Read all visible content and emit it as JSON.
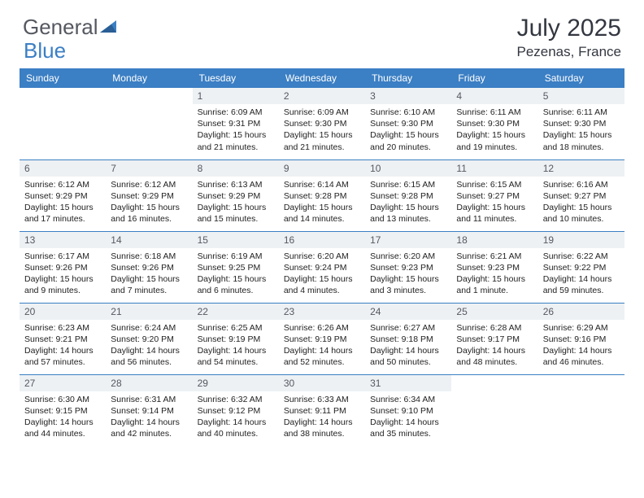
{
  "brand": {
    "part1": "General",
    "part2": "Blue"
  },
  "colors": {
    "accent": "#3b7fc4",
    "header_text": "#333740",
    "logo_gray": "#555860",
    "daynum_bg": "#eef1f4",
    "row_border": "#3b7fc4",
    "text": "#222222",
    "background": "#ffffff"
  },
  "title": "July 2025",
  "location": "Pezenas, France",
  "weekdays": [
    "Sunday",
    "Monday",
    "Tuesday",
    "Wednesday",
    "Thursday",
    "Friday",
    "Saturday"
  ],
  "layout": {
    "first_weekday_index": 2,
    "days_in_month": 31
  },
  "days": [
    {
      "n": 1,
      "sunrise": "6:09 AM",
      "sunset": "9:31 PM",
      "daylight": "15 hours and 21 minutes."
    },
    {
      "n": 2,
      "sunrise": "6:09 AM",
      "sunset": "9:30 PM",
      "daylight": "15 hours and 21 minutes."
    },
    {
      "n": 3,
      "sunrise": "6:10 AM",
      "sunset": "9:30 PM",
      "daylight": "15 hours and 20 minutes."
    },
    {
      "n": 4,
      "sunrise": "6:11 AM",
      "sunset": "9:30 PM",
      "daylight": "15 hours and 19 minutes."
    },
    {
      "n": 5,
      "sunrise": "6:11 AM",
      "sunset": "9:30 PM",
      "daylight": "15 hours and 18 minutes."
    },
    {
      "n": 6,
      "sunrise": "6:12 AM",
      "sunset": "9:29 PM",
      "daylight": "15 hours and 17 minutes."
    },
    {
      "n": 7,
      "sunrise": "6:12 AM",
      "sunset": "9:29 PM",
      "daylight": "15 hours and 16 minutes."
    },
    {
      "n": 8,
      "sunrise": "6:13 AM",
      "sunset": "9:29 PM",
      "daylight": "15 hours and 15 minutes."
    },
    {
      "n": 9,
      "sunrise": "6:14 AM",
      "sunset": "9:28 PM",
      "daylight": "15 hours and 14 minutes."
    },
    {
      "n": 10,
      "sunrise": "6:15 AM",
      "sunset": "9:28 PM",
      "daylight": "15 hours and 13 minutes."
    },
    {
      "n": 11,
      "sunrise": "6:15 AM",
      "sunset": "9:27 PM",
      "daylight": "15 hours and 11 minutes."
    },
    {
      "n": 12,
      "sunrise": "6:16 AM",
      "sunset": "9:27 PM",
      "daylight": "15 hours and 10 minutes."
    },
    {
      "n": 13,
      "sunrise": "6:17 AM",
      "sunset": "9:26 PM",
      "daylight": "15 hours and 9 minutes."
    },
    {
      "n": 14,
      "sunrise": "6:18 AM",
      "sunset": "9:26 PM",
      "daylight": "15 hours and 7 minutes."
    },
    {
      "n": 15,
      "sunrise": "6:19 AM",
      "sunset": "9:25 PM",
      "daylight": "15 hours and 6 minutes."
    },
    {
      "n": 16,
      "sunrise": "6:20 AM",
      "sunset": "9:24 PM",
      "daylight": "15 hours and 4 minutes."
    },
    {
      "n": 17,
      "sunrise": "6:20 AM",
      "sunset": "9:23 PM",
      "daylight": "15 hours and 3 minutes."
    },
    {
      "n": 18,
      "sunrise": "6:21 AM",
      "sunset": "9:23 PM",
      "daylight": "15 hours and 1 minute."
    },
    {
      "n": 19,
      "sunrise": "6:22 AM",
      "sunset": "9:22 PM",
      "daylight": "14 hours and 59 minutes."
    },
    {
      "n": 20,
      "sunrise": "6:23 AM",
      "sunset": "9:21 PM",
      "daylight": "14 hours and 57 minutes."
    },
    {
      "n": 21,
      "sunrise": "6:24 AM",
      "sunset": "9:20 PM",
      "daylight": "14 hours and 56 minutes."
    },
    {
      "n": 22,
      "sunrise": "6:25 AM",
      "sunset": "9:19 PM",
      "daylight": "14 hours and 54 minutes."
    },
    {
      "n": 23,
      "sunrise": "6:26 AM",
      "sunset": "9:19 PM",
      "daylight": "14 hours and 52 minutes."
    },
    {
      "n": 24,
      "sunrise": "6:27 AM",
      "sunset": "9:18 PM",
      "daylight": "14 hours and 50 minutes."
    },
    {
      "n": 25,
      "sunrise": "6:28 AM",
      "sunset": "9:17 PM",
      "daylight": "14 hours and 48 minutes."
    },
    {
      "n": 26,
      "sunrise": "6:29 AM",
      "sunset": "9:16 PM",
      "daylight": "14 hours and 46 minutes."
    },
    {
      "n": 27,
      "sunrise": "6:30 AM",
      "sunset": "9:15 PM",
      "daylight": "14 hours and 44 minutes."
    },
    {
      "n": 28,
      "sunrise": "6:31 AM",
      "sunset": "9:14 PM",
      "daylight": "14 hours and 42 minutes."
    },
    {
      "n": 29,
      "sunrise": "6:32 AM",
      "sunset": "9:12 PM",
      "daylight": "14 hours and 40 minutes."
    },
    {
      "n": 30,
      "sunrise": "6:33 AM",
      "sunset": "9:11 PM",
      "daylight": "14 hours and 38 minutes."
    },
    {
      "n": 31,
      "sunrise": "6:34 AM",
      "sunset": "9:10 PM",
      "daylight": "14 hours and 35 minutes."
    }
  ],
  "labels": {
    "sunrise": "Sunrise:",
    "sunset": "Sunset:",
    "daylight": "Daylight:"
  }
}
